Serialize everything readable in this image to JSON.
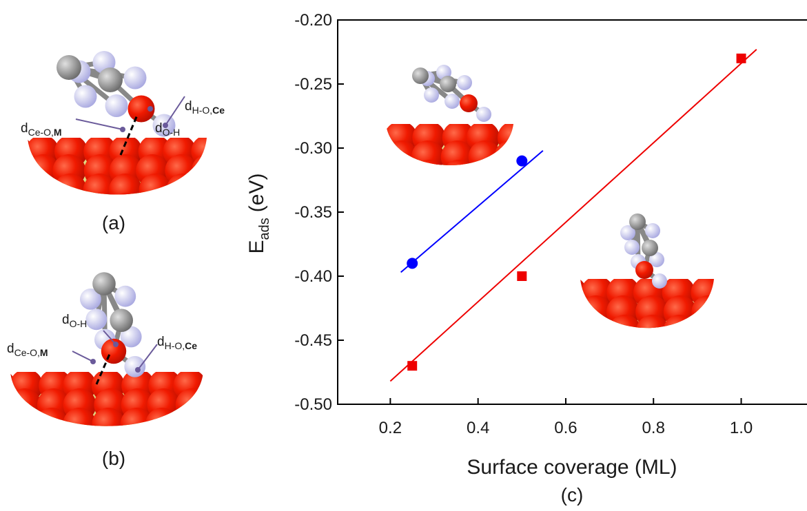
{
  "panels": [
    {
      "label": "(a)",
      "annotations": [
        {
          "main": "d",
          "sub": "O-H"
        },
        {
          "main": "d",
          "sub": "H-O,",
          "sub_bold": "Ce"
        },
        {
          "main": "d",
          "sub": "Ce-O,",
          "sub_bold": "M"
        }
      ]
    },
    {
      "label": "(b)",
      "annotations": [
        {
          "main": "d",
          "sub": "O-H"
        },
        {
          "main": "d",
          "sub": "Ce-O,",
          "sub_bold": "M"
        },
        {
          "main": "d",
          "sub": "H-O,",
          "sub_bold": "Ce"
        }
      ]
    }
  ],
  "chart_data": {
    "type": "scatter",
    "panel_label": "(c)",
    "x_label": "Surface coverage (ML)",
    "y_label": {
      "main": "E",
      "sub": "ads",
      "unit": "(eV)"
    },
    "xlim": [
      0.08,
      1.15
    ],
    "ylim": [
      -0.5,
      -0.2
    ],
    "xticks": [
      0.2,
      0.4,
      0.6,
      0.8,
      {
        "value": 1,
        "label": "1.0"
      }
    ],
    "yticks": [
      {
        "value": -0.5,
        "label": "-0.50"
      },
      {
        "value": -0.45,
        "label": "-0.45"
      },
      {
        "value": -0.4,
        "label": "-0.40"
      },
      {
        "value": -0.35,
        "label": "-0.35"
      },
      {
        "value": -0.3,
        "label": "-0.30"
      },
      {
        "value": -0.25,
        "label": "-0.25"
      },
      {
        "value": -0.2,
        "label": "-0.20"
      }
    ],
    "series": [
      {
        "color": "#0000ff",
        "marker": "circle",
        "x": [
          0.25,
          0.5
        ],
        "values": [
          -0.39,
          -0.31
        ],
        "fit": {
          "x": [
            0.224,
            0.548
          ],
          "values": [
            -0.397,
            -0.302
          ]
        }
      },
      {
        "color": "#ee0000",
        "marker": "square",
        "x": [
          0.25,
          0.5,
          1.0
        ],
        "values": [
          -0.47,
          -0.4,
          -0.23
        ],
        "fit": {
          "x": [
            0.2,
            1.035
          ],
          "values": [
            -0.482,
            -0.223
          ]
        }
      }
    ]
  }
}
